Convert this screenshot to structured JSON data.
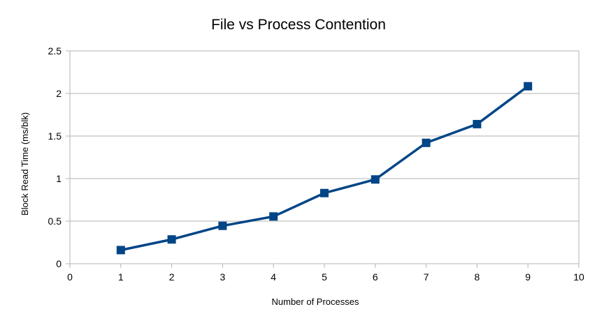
{
  "chart_data": {
    "type": "line",
    "title": "File vs Process Contention",
    "xlabel": "Number of Processes",
    "ylabel": "Block Read Time (ms/blk)",
    "xlim": [
      0,
      10
    ],
    "ylim": [
      0,
      2.5
    ],
    "x_ticks": [
      "0",
      "1",
      "2",
      "3",
      "4",
      "5",
      "6",
      "7",
      "8",
      "9",
      "10"
    ],
    "y_ticks": [
      "0",
      "0.5",
      "1",
      "1.5",
      "2",
      "2.5"
    ],
    "grid": true,
    "legend": "none",
    "series": [
      {
        "color": "#004586",
        "marker": "square",
        "x": [
          1,
          2,
          3,
          4,
          5,
          6,
          7,
          8,
          9
        ],
        "values": [
          0.16,
          0.285,
          0.445,
          0.555,
          0.83,
          0.99,
          1.42,
          1.64,
          2.085
        ]
      }
    ]
  }
}
